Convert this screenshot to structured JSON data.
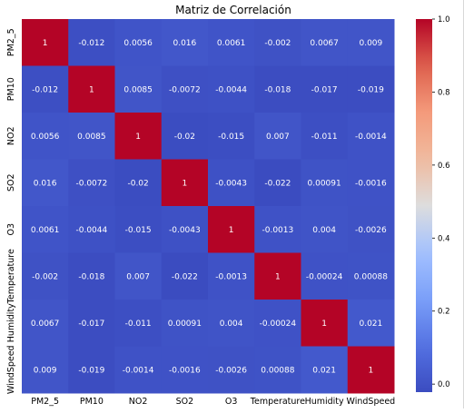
{
  "chart_data": {
    "type": "heatmap",
    "title": "Matriz de Correlación",
    "xlabels": [
      "PM2_5",
      "PM10",
      "NO2",
      "SO2",
      "O3",
      "Temperature",
      "Humidity",
      "WindSpeed"
    ],
    "ylabels": [
      "PM2_5",
      "PM10",
      "NO2",
      "SO2",
      "O3",
      "Temperature",
      "Humidity",
      "WindSpeed"
    ],
    "values": [
      [
        1,
        -0.012,
        0.0056,
        0.016,
        0.0061,
        -0.002,
        0.0067,
        0.009
      ],
      [
        -0.012,
        1,
        0.0085,
        -0.0072,
        -0.0044,
        -0.018,
        -0.017,
        -0.019
      ],
      [
        0.0056,
        0.0085,
        1,
        -0.02,
        -0.015,
        0.007,
        -0.011,
        -0.0014
      ],
      [
        0.016,
        -0.0072,
        -0.02,
        1,
        -0.0043,
        -0.022,
        0.00091,
        -0.0016
      ],
      [
        0.0061,
        -0.0044,
        -0.015,
        -0.0043,
        1,
        -0.0013,
        0.004,
        -0.0026
      ],
      [
        -0.002,
        -0.018,
        0.007,
        -0.022,
        -0.0013,
        1,
        -0.00024,
        0.00088
      ],
      [
        0.0067,
        -0.017,
        -0.011,
        0.00091,
        0.004,
        -0.00024,
        1,
        0.021
      ],
      [
        0.009,
        -0.019,
        -0.0014,
        -0.0016,
        -0.0026,
        0.00088,
        0.021,
        1
      ]
    ],
    "annotations": [
      [
        "1",
        "-0.012",
        "0.0056",
        "0.016",
        "0.0061",
        "-0.002",
        "0.0067",
        "0.009"
      ],
      [
        "-0.012",
        "1",
        "0.0085",
        "-0.0072",
        "-0.0044",
        "-0.018",
        "-0.017",
        "-0.019"
      ],
      [
        "0.0056",
        "0.0085",
        "1",
        "-0.02",
        "-0.015",
        "0.007",
        "-0.011",
        "-0.0014"
      ],
      [
        "0.016",
        "-0.0072",
        "-0.02",
        "1",
        "-0.0043",
        "-0.022",
        "0.00091",
        "-0.0016"
      ],
      [
        "0.0061",
        "-0.0044",
        "-0.015",
        "-0.0043",
        "1",
        "-0.0013",
        "0.004",
        "-0.0026"
      ],
      [
        "-0.002",
        "-0.018",
        "0.007",
        "-0.022",
        "-0.0013",
        "1",
        "-0.00024",
        "0.00088"
      ],
      [
        "0.0067",
        "-0.017",
        "-0.011",
        "0.00091",
        "0.004",
        "-0.00024",
        "1",
        "0.021"
      ],
      [
        "0.009",
        "-0.019",
        "-0.0014",
        "-0.0016",
        "-0.0026",
        "0.00088",
        "0.021",
        "1"
      ]
    ],
    "colormap": "coolwarm",
    "colorbar": {
      "range": [
        -0.022,
        1
      ],
      "ticks": [
        0.0,
        0.2,
        0.4,
        0.6,
        0.8,
        1.0
      ],
      "tick_labels": [
        "0.0",
        "0.2",
        "0.4",
        "0.6",
        "0.8",
        "1.0"
      ]
    },
    "colors": {
      "low": "#3b4cc0",
      "mid": "#dddddd",
      "high": "#b40426",
      "text_on_dark": "#ffffff"
    }
  }
}
